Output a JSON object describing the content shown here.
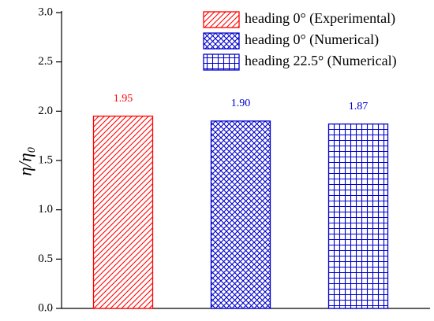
{
  "chart_data": {
    "type": "bar",
    "ylabel": "η/η₀",
    "ylim": [
      0,
      3
    ],
    "yticks": [
      {
        "value": 0,
        "label": "0.0"
      },
      0.5,
      {
        "value": 1,
        "label": "1.0"
      },
      1.5,
      {
        "value": 2,
        "label": "2.0"
      },
      2.5,
      {
        "value": 3,
        "label": "3.0"
      }
    ],
    "legend": "upper right",
    "series": [
      {
        "name": "heading 0° (Experimental)",
        "color": "#ff0000",
        "hatch": "diagonal",
        "values": [
          1.95
        ],
        "value_labels": [
          "1.95"
        ]
      },
      {
        "name": "heading 0° (Numerical)",
        "color": "#0000cc",
        "hatch": "crosshatch",
        "values": [
          1.9
        ],
        "value_labels": [
          "1.90"
        ]
      },
      {
        "name": "heading 22.5° (Numerical)",
        "color": "#0000cc",
        "hatch": "grid",
        "values": [
          1.87
        ],
        "value_labels": [
          "1.87"
        ]
      }
    ]
  }
}
